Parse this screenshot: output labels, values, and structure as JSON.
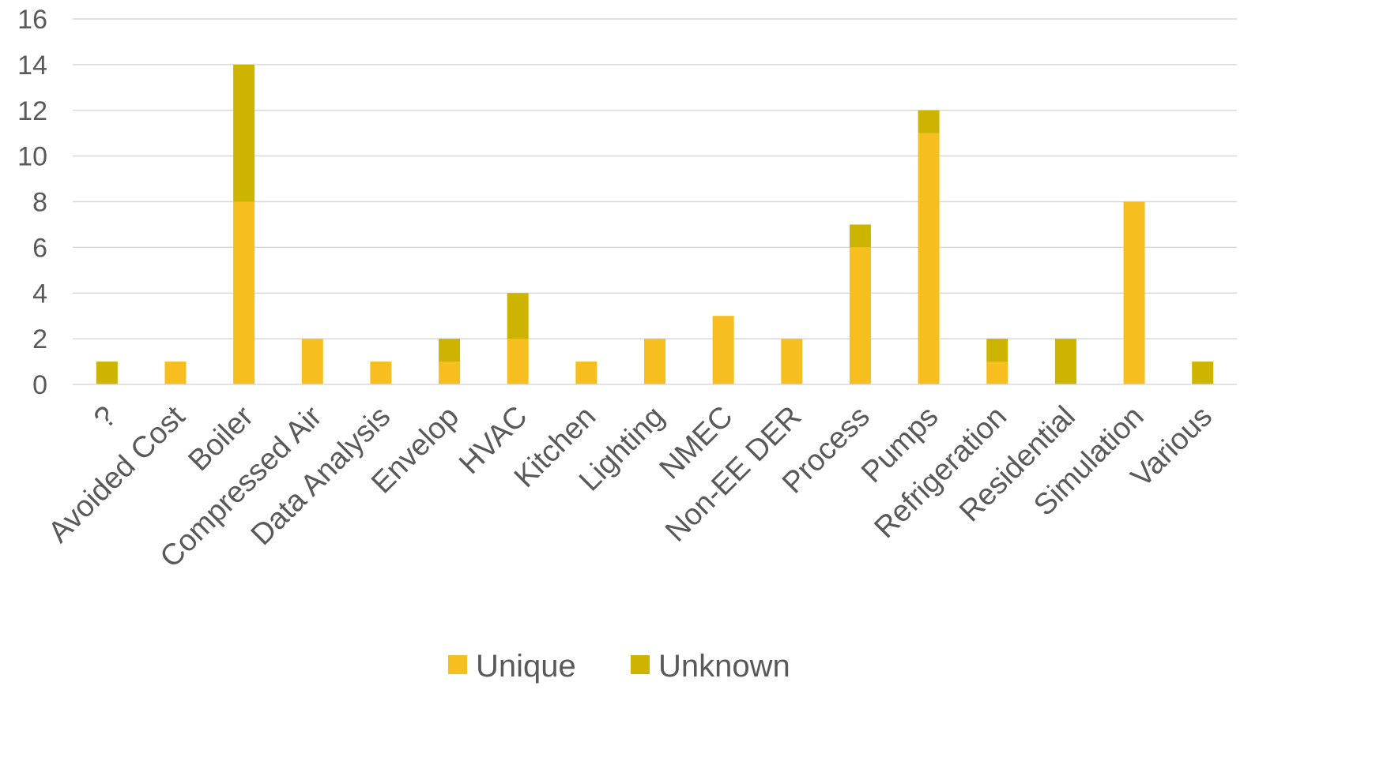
{
  "chart_data": {
    "type": "bar",
    "stacked": true,
    "categories": [
      "?",
      "Avoided Cost",
      "Boiler",
      "Compressed Air",
      "Data Analysis",
      "Envelop",
      "HVAC",
      "Kitchen",
      "Lighting",
      "NMEC",
      "Non-EE DER",
      "Process",
      "Pumps",
      "Refrigeration",
      "Residential",
      "Simulation",
      "Various"
    ],
    "series": [
      {
        "name": "Unique",
        "color": "#F6BE1E",
        "values": [
          0,
          1,
          8,
          2,
          1,
          1,
          2,
          1,
          2,
          3,
          2,
          6,
          11,
          1,
          0,
          8,
          0
        ]
      },
      {
        "name": "Unknown",
        "color": "#CDB400",
        "values": [
          1,
          0,
          6,
          0,
          0,
          1,
          2,
          0,
          0,
          0,
          0,
          1,
          1,
          1,
          2,
          0,
          1
        ]
      }
    ],
    "ylim": [
      0,
      16
    ],
    "yticks": [
      "0",
      "2",
      "4",
      "6",
      "8",
      "10",
      "12",
      "14",
      "16"
    ],
    "grid": true,
    "gridColor": "#D9D9D9",
    "legend_position": "bottom"
  }
}
